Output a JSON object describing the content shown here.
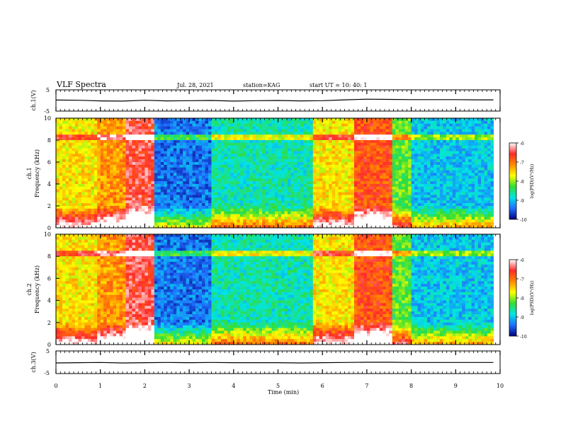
{
  "header": {
    "title": "VLF Spectra",
    "date": "Jul. 28, 2021",
    "station": "station=KAG",
    "start": "start UT =  10: 40: 1"
  },
  "colorbar": {
    "label": "log(PSD)(V²/Hz)",
    "ticks": [
      "-6",
      "-7",
      "-8",
      "-9",
      "-10"
    ],
    "gradient": [
      "#ffffff",
      "#ff2a2a",
      "#ff8a00",
      "#ffff00",
      "#33dd33",
      "#00e5e5",
      "#1f6fff",
      "#000080"
    ]
  },
  "chart_data": [
    {
      "type": "line",
      "name": "ch1 waveform",
      "ylabel": "ch.1(V)",
      "ylim": [
        -5,
        5
      ],
      "yticks": [
        "5",
        "-5"
      ],
      "xlim": [
        0,
        10
      ],
      "x": [
        0,
        0.5,
        1,
        1.5,
        2,
        2.5,
        3,
        3.5,
        4,
        4.5,
        5,
        5.5,
        6,
        6.5,
        7,
        7.5,
        8,
        8.5,
        9,
        9.5,
        9.85
      ],
      "y": [
        0.2,
        0.1,
        -0.2,
        -0.3,
        0.1,
        -0.2,
        -0.1,
        0.0,
        -0.3,
        -0.1,
        0.0,
        -0.2,
        -0.1,
        0.3,
        0.6,
        0.5,
        0.4,
        0.4,
        0.4,
        0.3,
        0.3
      ]
    },
    {
      "type": "heatmap",
      "name": "ch1 spectrogram",
      "ylabel": "ch.1",
      "ylabel2": "Frequency (kHz)",
      "ylim": [
        0,
        10
      ],
      "yticks": [
        "0",
        "2",
        "4",
        "6",
        "8",
        "10"
      ],
      "xlim": [
        0,
        10
      ],
      "segments": [
        {
          "from": 0.0,
          "to": 0.9,
          "level": -7.6
        },
        {
          "from": 0.9,
          "to": 1.6,
          "level": -7.2
        },
        {
          "from": 1.6,
          "to": 2.2,
          "level": -6.5
        },
        {
          "from": 2.2,
          "to": 3.5,
          "level": -9.4
        },
        {
          "from": 3.5,
          "to": 5.8,
          "level": -8.7
        },
        {
          "from": 5.8,
          "to": 6.7,
          "level": -7.6
        },
        {
          "from": 6.7,
          "to": 7.6,
          "level": -6.8
        },
        {
          "from": 7.6,
          "to": 8.0,
          "level": -8.2
        },
        {
          "from": 8.0,
          "to": 9.85,
          "level": -9.0
        }
      ],
      "line_khz": 8.2
    },
    {
      "type": "heatmap",
      "name": "ch2 spectrogram",
      "ylabel": "ch.2",
      "ylabel2": "Frequency (kHz)",
      "ylim": [
        0,
        10
      ],
      "yticks": [
        "0",
        "2",
        "4",
        "6",
        "8",
        "10"
      ],
      "xlim": [
        0,
        10
      ],
      "segments": [
        {
          "from": 0.0,
          "to": 0.9,
          "level": -7.6
        },
        {
          "from": 0.9,
          "to": 1.6,
          "level": -7.2
        },
        {
          "from": 1.6,
          "to": 2.2,
          "level": -6.5
        },
        {
          "from": 2.2,
          "to": 3.5,
          "level": -9.4
        },
        {
          "from": 3.5,
          "to": 5.8,
          "level": -8.7
        },
        {
          "from": 5.8,
          "to": 6.7,
          "level": -7.6
        },
        {
          "from": 6.7,
          "to": 7.6,
          "level": -6.8
        },
        {
          "from": 7.6,
          "to": 8.0,
          "level": -8.2
        },
        {
          "from": 8.0,
          "to": 9.85,
          "level": -9.0
        }
      ],
      "line_khz": 8.2
    },
    {
      "type": "line",
      "name": "ch3 waveform",
      "ylabel": "ch.3(V)",
      "ylim": [
        -5,
        5
      ],
      "yticks": [
        "5",
        "-5"
      ],
      "xlim": [
        0,
        10
      ],
      "xlabel": "Time  (min)",
      "xticks": [
        "0",
        "1",
        "2",
        "3",
        "4",
        "5",
        "6",
        "7",
        "8",
        "9",
        "10"
      ],
      "x": [
        0,
        0.5,
        1,
        1.5,
        2,
        2.5,
        3,
        3.5,
        4,
        4.5,
        5,
        5.5,
        6,
        6.5,
        7,
        7.5,
        8,
        8.5,
        9,
        9.5,
        9.85
      ],
      "y": [
        -0.3,
        -0.2,
        -0.1,
        -0.3,
        -0.2,
        -0.1,
        -0.2,
        -0.1,
        -0.2,
        -0.2,
        -0.2,
        -0.3,
        -0.2,
        -0.1,
        0.0,
        0.0,
        -0.1,
        -0.1,
        -0.1,
        -0.1,
        -0.1
      ]
    }
  ]
}
